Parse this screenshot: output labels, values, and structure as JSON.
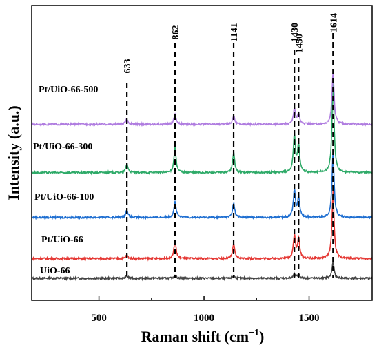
{
  "chart_data": {
    "type": "line",
    "xlabel": "Raman shift (cm⁻¹)",
    "xlabel_main": "Raman shift (cm",
    "xlabel_sup": "−1",
    "xlabel_close": ")",
    "ylabel": "Intensity (a.u.)",
    "xlim": [
      180,
      1800
    ],
    "xticks": [
      500,
      1000,
      1500
    ],
    "xtick_labels": [
      "500",
      "1000",
      "1500"
    ],
    "y_ticks_shown": false,
    "grid": false,
    "legend": "none",
    "peak_markers": [
      {
        "x": 633,
        "label": "633"
      },
      {
        "x": 862,
        "label": "862"
      },
      {
        "x": 1141,
        "label": "1141"
      },
      {
        "x": 1430,
        "label": "1430"
      },
      {
        "x": 1450,
        "label": "1450"
      },
      {
        "x": 1614,
        "label": "1614"
      }
    ],
    "series": [
      {
        "name": "UiO-66",
        "color": "#444444",
        "baseline": 0,
        "peaks": [
          {
            "x": 633,
            "h": 0.06
          },
          {
            "x": 862,
            "h": 0.08
          },
          {
            "x": 1141,
            "h": 0.07
          },
          {
            "x": 1430,
            "h": 0.1
          },
          {
            "x": 1450,
            "h": 0.12
          },
          {
            "x": 1614,
            "h": 0.45
          }
        ]
      },
      {
        "name": "Pt/UiO-66",
        "color": "#e53935",
        "baseline": 0.55,
        "peaks": [
          {
            "x": 633,
            "h": 0.1
          },
          {
            "x": 862,
            "h": 0.5
          },
          {
            "x": 1141,
            "h": 0.4
          },
          {
            "x": 1430,
            "h": 0.65
          },
          {
            "x": 1450,
            "h": 0.55
          },
          {
            "x": 1614,
            "h": 1.85
          }
        ]
      },
      {
        "name": "Pt/UiO-66-100",
        "color": "#1f6fd1",
        "baseline": 1.7,
        "peaks": [
          {
            "x": 633,
            "h": 0.2
          },
          {
            "x": 862,
            "h": 0.45
          },
          {
            "x": 1141,
            "h": 0.4
          },
          {
            "x": 1430,
            "h": 0.75
          },
          {
            "x": 1450,
            "h": 0.55
          },
          {
            "x": 1614,
            "h": 1.8
          }
        ]
      },
      {
        "name": "Pt/UiO-66-300",
        "color": "#2eaa68",
        "baseline": 2.95,
        "peaks": [
          {
            "x": 633,
            "h": 0.25
          },
          {
            "x": 862,
            "h": 0.7
          },
          {
            "x": 1141,
            "h": 0.55
          },
          {
            "x": 1430,
            "h": 1.05
          },
          {
            "x": 1450,
            "h": 0.75
          },
          {
            "x": 1614,
            "h": 2.5
          }
        ]
      },
      {
        "name": "Pt/UiO-66-500",
        "color": "#b07de0",
        "baseline": 4.3,
        "peaks": [
          {
            "x": 633,
            "h": 0.15
          },
          {
            "x": 862,
            "h": 0.3
          },
          {
            "x": 1141,
            "h": 0.25
          },
          {
            "x": 1430,
            "h": 0.45
          },
          {
            "x": 1450,
            "h": 0.3
          },
          {
            "x": 1614,
            "h": 1.45
          }
        ]
      }
    ]
  }
}
